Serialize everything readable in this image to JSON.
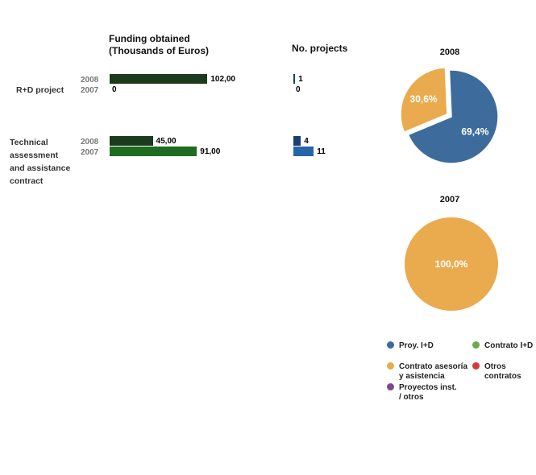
{
  "header": {
    "funding_line1": "Funding obtained",
    "funding_line2": "(Thousands of Euros)",
    "projects": "No. projects"
  },
  "chart_data": [
    {
      "type": "bar",
      "orientation": "horizontal",
      "title": "Funding obtained (Thousands of Euros)",
      "categories": [
        "R+D project",
        "Technical assessment and assistance contract"
      ],
      "series": [
        {
          "name": "2008",
          "values": [
            102.0,
            45.0
          ],
          "labels": [
            "102,00",
            "45,00"
          ],
          "color": "#1c3b1e"
        },
        {
          "name": "2007",
          "values": [
            0,
            91.0
          ],
          "labels": [
            "0",
            "91,00"
          ],
          "color": "#1e6b22"
        }
      ]
    },
    {
      "type": "bar",
      "orientation": "horizontal",
      "title": "No. projects",
      "categories": [
        "R+D project",
        "Technical assessment and assistance contract"
      ],
      "series": [
        {
          "name": "2008",
          "values": [
            1,
            4
          ],
          "labels": [
            "1",
            "4"
          ],
          "color": "#1a3f73"
        },
        {
          "name": "2007",
          "values": [
            0,
            11
          ],
          "labels": [
            "0",
            "11"
          ],
          "color": "#2566a8"
        }
      ]
    },
    {
      "type": "pie",
      "title": "2008",
      "slices": [
        {
          "legend_key": "proy",
          "value": 69.4,
          "label": "69,4%",
          "color": "#3d6b9c"
        },
        {
          "legend_key": "asesoria",
          "value": 30.6,
          "label": "30,6%",
          "color": "#eaab4e"
        }
      ]
    },
    {
      "type": "pie",
      "title": "2007",
      "slices": [
        {
          "legend_key": "asesoria",
          "value": 100.0,
          "label": "100,0%",
          "color": "#eaab4e"
        }
      ]
    }
  ],
  "rows": [
    {
      "label_lines": [
        "R+D project"
      ],
      "year_a": "2008",
      "year_b": "2007"
    },
    {
      "label_lines": [
        "Technical",
        "assessment",
        "and assistance",
        "contract"
      ],
      "year_a": "2008",
      "year_b": "2007"
    }
  ],
  "legend": [
    {
      "key": "proy",
      "lines": [
        "Proy. I+D"
      ],
      "color": "#3d6b9c"
    },
    {
      "key": "contrato_id",
      "lines": [
        "Contrato I+D"
      ],
      "color": "#6ea84f"
    },
    {
      "key": "asesoria",
      "lines": [
        "Contrato asesoría",
        "y asistencia"
      ],
      "color": "#eaab4e"
    },
    {
      "key": "otros",
      "lines": [
        "Otros",
        "contratos"
      ],
      "color": "#d23b3b"
    },
    {
      "key": "inst",
      "lines": [
        "Proyectos inst.",
        "/ otros"
      ],
      "color": "#7b4a8e"
    }
  ]
}
